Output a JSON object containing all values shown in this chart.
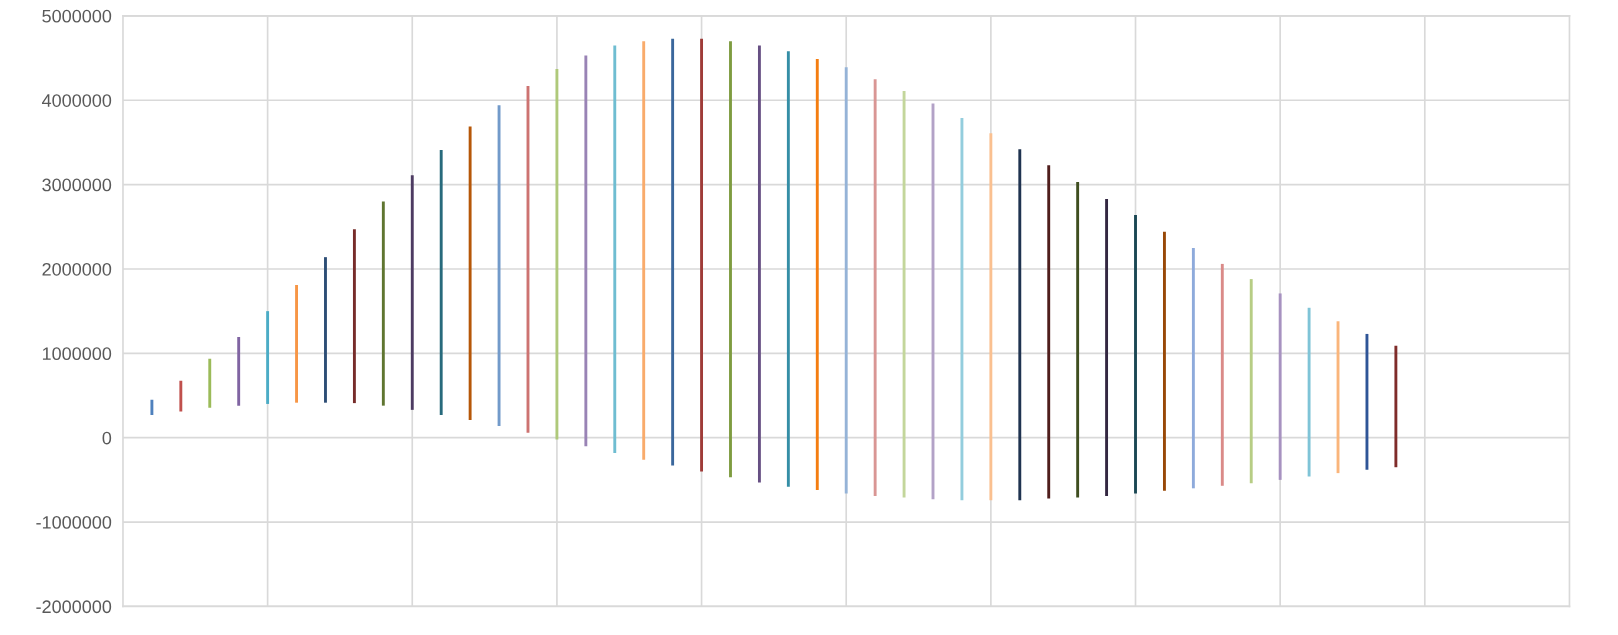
{
  "chart_data": {
    "type": "bar",
    "categories": [
      null,
      null,
      null,
      null,
      null,
      null,
      null,
      null,
      null,
      null,
      null,
      null,
      null,
      null,
      null,
      null,
      null,
      null,
      null,
      null,
      null,
      null,
      null,
      null,
      null,
      null,
      null,
      null,
      null,
      null,
      null,
      null,
      null,
      null,
      null,
      null,
      null,
      null,
      null,
      null,
      null,
      null,
      null,
      null
    ],
    "ylim": [
      -2000000,
      5000000
    ],
    "yticks": [
      -2000000,
      -1000000,
      0,
      1000000,
      2000000,
      3000000,
      4000000,
      5000000
    ],
    "grid": true,
    "tick_labels": "y",
    "base": [
      270000,
      310000,
      355000,
      380000,
      400000,
      415000,
      415000,
      410000,
      380000,
      330000,
      270000,
      210000,
      140000,
      60000,
      -20000,
      -100000,
      -180000,
      -260000,
      -330000,
      -400000,
      -470000,
      -530000,
      -580000,
      -620000,
      -660000,
      -690000,
      -710000,
      -730000,
      -740000,
      -740000,
      -740000,
      -720000,
      -710000,
      -690000,
      -660000,
      -630000,
      -600000,
      -570000,
      -540000,
      -500000,
      -460000,
      -420000,
      -380000,
      -350000
    ],
    "values": [
      180000,
      365000,
      580000,
      815000,
      1100000,
      1395000,
      1725000,
      2060000,
      2420000,
      2780000,
      3140000,
      3480000,
      3800000,
      4110000,
      4390000,
      4630000,
      4830000,
      4960000,
      5060000,
      5130000,
      5170000,
      5180000,
      5160000,
      5110000,
      5050000,
      4940000,
      4820000,
      4690000,
      4530000,
      4350000,
      4160000,
      3950000,
      3740000,
      3520000,
      3300000,
      3070000,
      2850000,
      2630000,
      2420000,
      2210000,
      2000000,
      1800000,
      1610000,
      1440000
    ],
    "colors": [
      "#4f81bd",
      "#c0504d",
      "#9bbb59",
      "#8064a2",
      "#4bacc6",
      "#f79646",
      "#2c4d75",
      "#772c2a",
      "#5f7530",
      "#4d3b62",
      "#276a7c",
      "#b65708",
      "#729aca",
      "#cd7371",
      "#afc97a",
      "#9983b5",
      "#6fbdd1",
      "#f9ab6b",
      "#3a679c",
      "#9f3b38",
      "#7e9c40",
      "#664f83",
      "#358ea6",
      "#f47d10",
      "#95b3d7",
      "#d99694",
      "#c3d69b",
      "#b3a2c7",
      "#93cddd",
      "#fac090",
      "#1f3350",
      "#4f1d1c",
      "#3f4e20",
      "#332741",
      "#1a4753",
      "#984807",
      "#8eaadb",
      "#da8a88",
      "#b7cd85",
      "#a792c0",
      "#7fc4d7",
      "#fab57b",
      "#2f5597",
      "#7f2c2a"
    ]
  }
}
